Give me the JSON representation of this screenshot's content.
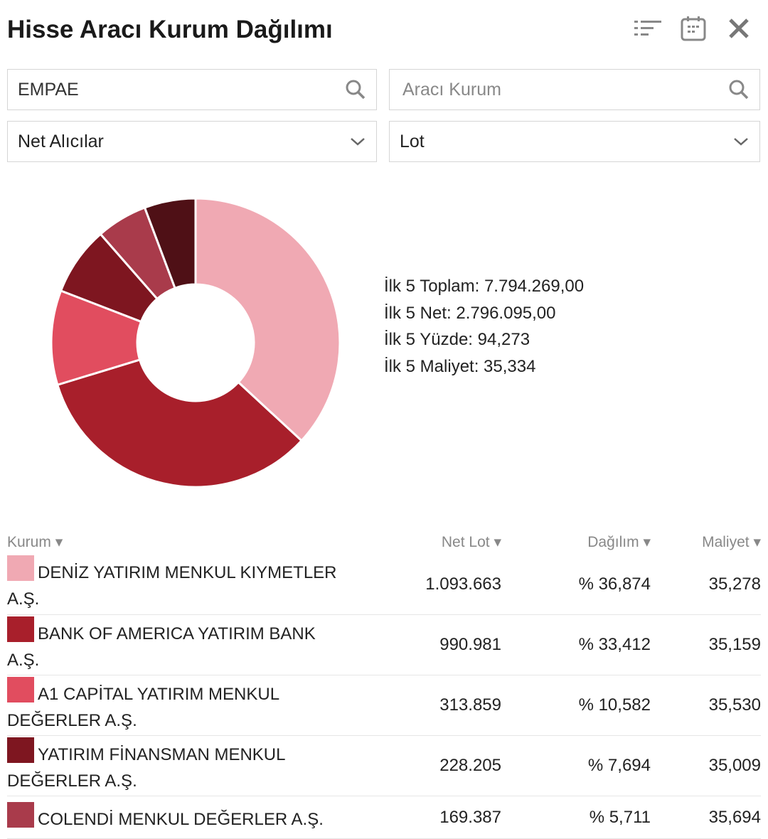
{
  "header": {
    "title": "Hisse Aracı Kurum Dağılımı",
    "icons": [
      "filter-list-icon",
      "calendar-icon",
      "close-icon"
    ]
  },
  "filters": {
    "stock_value": "EMPAE",
    "broker_placeholder": "Aracı Kurum",
    "type_selected": "Net Alıcılar",
    "unit_selected": "Lot"
  },
  "summary": {
    "total": "İlk 5 Toplam: 7.794.269,00",
    "net": "İlk 5 Net: 2.796.095,00",
    "percent": "İlk 5 Yüzde: 94,273",
    "cost": "İlk 5 Maliyet: 35,334"
  },
  "table": {
    "headers": [
      "Kurum",
      "Net Lot",
      "Dağılım",
      "Maliyet"
    ],
    "rows": [
      {
        "name": "DENİZ YATIRIM MENKUL KIYMETLER A.Ş.",
        "lot": "1.093.663",
        "dist": "% 36,874",
        "cost": "35,278",
        "color": "#f0a9b3"
      },
      {
        "name": "BANK OF AMERICA YATIRIM BANK A.Ş.",
        "lot": "990.981",
        "dist": "% 33,412",
        "cost": "35,159",
        "color": "#a81f2b"
      },
      {
        "name": "A1 CAPİTAL YATIRIM MENKUL DEĞERLER A.Ş.",
        "lot": "313.859",
        "dist": "% 10,582",
        "cost": "35,530",
        "color": "#e14d5f"
      },
      {
        "name": "YATIRIM FİNANSMAN MENKUL DEĞERLER A.Ş.",
        "lot": "228.205",
        "dist": "% 7,694",
        "cost": "35,009",
        "color": "#7e1620"
      },
      {
        "name": "COLENDİ MENKUL DEĞERLER A.Ş.",
        "lot": "169.387",
        "dist": "% 5,711",
        "cost": "35,694",
        "color": "#a93b4b"
      }
    ]
  },
  "chart_data": {
    "type": "pie",
    "donut": true,
    "values": [
      36.874,
      33.412,
      10.582,
      7.694,
      5.711,
      5.727
    ],
    "colors": [
      "#f0a9b3",
      "#a81f2b",
      "#e14d5f",
      "#7e1620",
      "#a93b4b",
      "#4f1016"
    ]
  }
}
